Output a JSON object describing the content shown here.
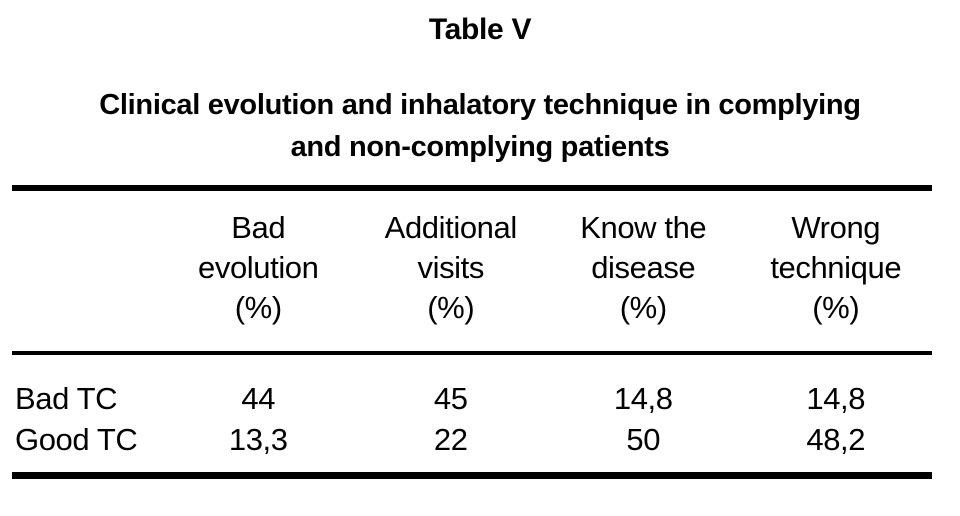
{
  "title": "Table V",
  "subtitle_lines": [
    "Clinical evolution and inhalatory technique in complying",
    "and non-complying patients"
  ],
  "table": {
    "columns": [
      {
        "label": "Bad evolution (%)",
        "lines": [
          "Bad",
          "evolution",
          "(%)"
        ]
      },
      {
        "label": "Additional visits (%)",
        "lines": [
          "Additional",
          "visits",
          "(%)"
        ]
      },
      {
        "label": "Know the disease (%)",
        "lines": [
          "Know the",
          "disease",
          "(%)"
        ]
      },
      {
        "label": "Wrong technique (%)",
        "lines": [
          "Wrong",
          "technique",
          "(%)"
        ]
      }
    ],
    "rows": [
      {
        "label": "Bad TC",
        "values": [
          "44",
          "45",
          "14,8",
          "14,8"
        ]
      },
      {
        "label": "Good TC",
        "values": [
          "13,3",
          "22",
          "50",
          "48,2"
        ]
      }
    ]
  },
  "colors": {
    "background": "#ffffff",
    "text": "#000000",
    "rule": "#000000"
  }
}
